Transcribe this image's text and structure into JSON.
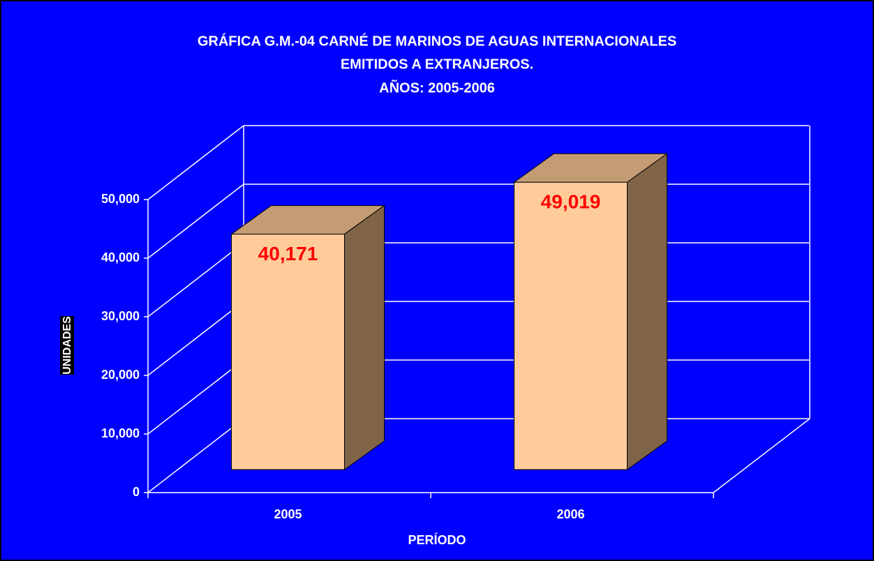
{
  "chart_data": {
    "type": "bar3d",
    "title": [
      "GRÁFICA G.M.-04 CARNÉ DE MARINOS DE AGUAS INTERNACIONALES",
      "EMITIDOS A EXTRANJEROS.",
      "AÑOS: 2005-2006"
    ],
    "categories": [
      "2005",
      "2006"
    ],
    "values": [
      40171,
      49019
    ],
    "value_labels": [
      "40,171",
      "49,019"
    ],
    "color": "#ffcc99",
    "value_label_color": "#ff0000",
    "ylim": [
      0,
      50000
    ],
    "yticks": [
      0,
      {
        "value": 10000,
        "label": "10,000"
      },
      {
        "value": 20000,
        "label": "20,000"
      },
      {
        "value": 30000,
        "label": "30,000"
      },
      {
        "value": 40000,
        "label": "40,000"
      },
      {
        "value": 50000,
        "label": "50,000"
      }
    ],
    "ylabel": "UNIDADES",
    "xlabel": "PERÍODO",
    "grid": true
  }
}
